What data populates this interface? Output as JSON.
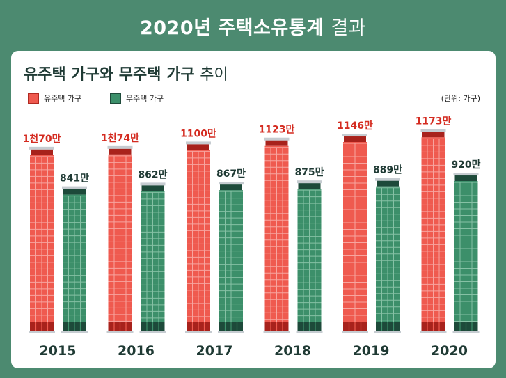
{
  "title_bold": "2020년 주택소유통계",
  "title_light": "결과",
  "subtitle_bold": "유주택 가구와 무주택 가구",
  "subtitle_light": "추이",
  "colors": {
    "background": "#4c8a70",
    "owner": "#ef5a4f",
    "nonowner": "#3c8f6a"
  },
  "chart_data": {
    "type": "bar",
    "title": "유주택 가구와 무주택 가구 추이",
    "unit": "(단위: 가구)",
    "categories": [
      "2015",
      "2016",
      "2017",
      "2018",
      "2019",
      "2020"
    ],
    "series": [
      {
        "name": "유주택 가구",
        "values": [
          1070,
          1074,
          1100,
          1123,
          1146,
          1173
        ],
        "labels": [
          "1천70만",
          "1천74만",
          "1100만",
          "1123만",
          "1146만",
          "1173만"
        ]
      },
      {
        "name": "무주택 가구",
        "values": [
          841,
          862,
          867,
          875,
          889,
          920
        ],
        "labels": [
          "841만",
          "862만",
          "867만",
          "875만",
          "889만",
          "920만"
        ]
      }
    ]
  }
}
